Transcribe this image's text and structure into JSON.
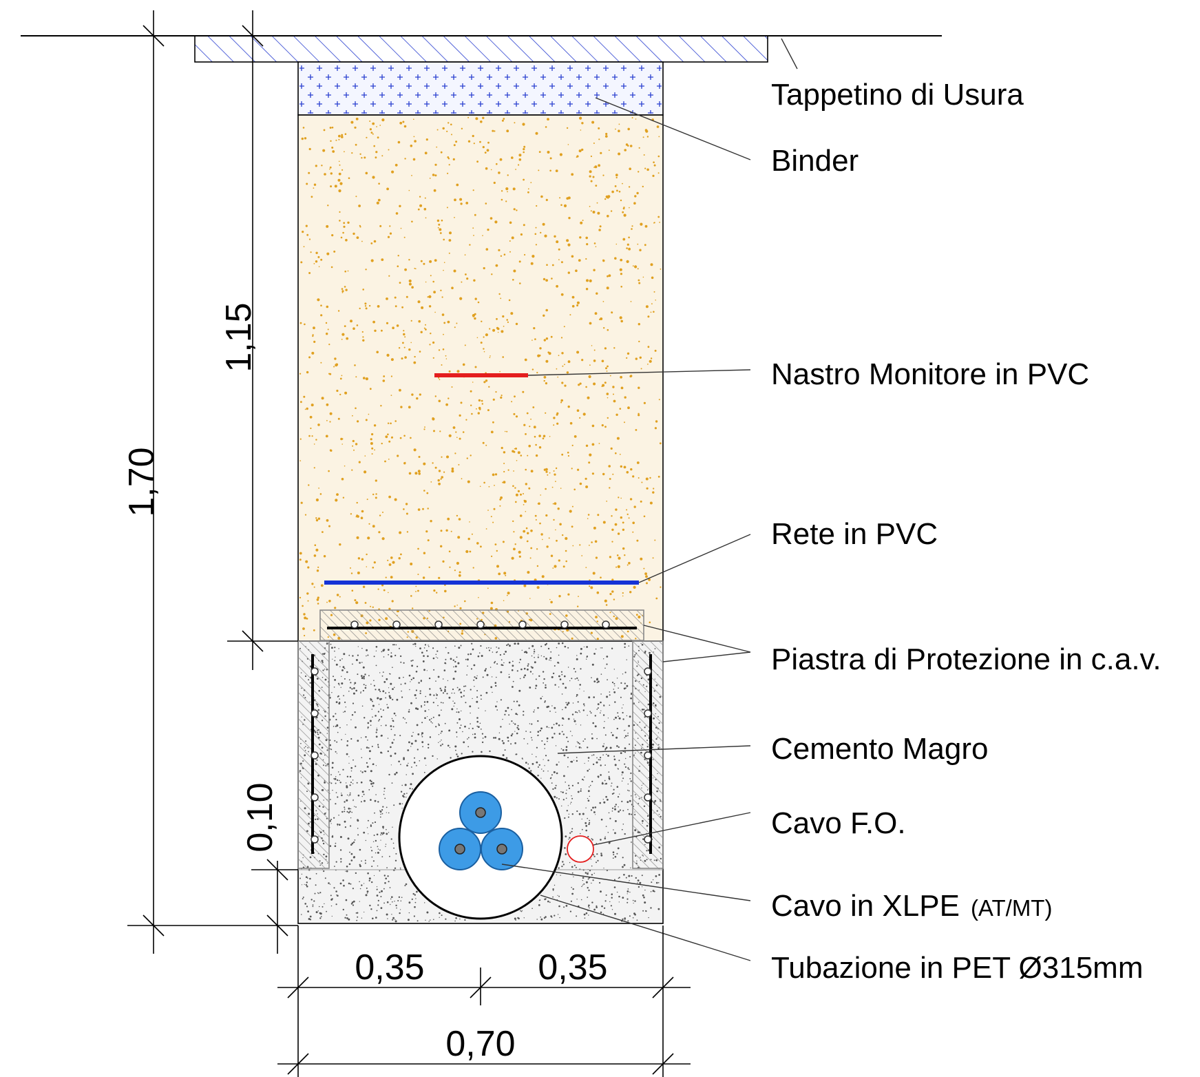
{
  "labels": {
    "tappetino": "Tappetino di Usura",
    "binder": "Binder",
    "nastro": "Nastro Monitore in PVC",
    "rete": "Rete in PVC",
    "piastra": "Piastra di Protezione in c.a.v.",
    "cemento": "Cemento Magro",
    "cavo_fo": "Cavo F.O.",
    "cavo_xlpe": "Cavo in XLPE",
    "cavo_xlpe_suffix": "(AT/MT)",
    "tubazione": "Tubazione in PET Ø315mm"
  },
  "dimensions": {
    "total_depth": "1,70",
    "upper_depth": "1,15",
    "bottom_layer": "0,10",
    "half_width_left": "0,35",
    "half_width_right": "0,35",
    "total_width": "0,70"
  },
  "colors": {
    "backfill": "#fbf3e3",
    "backfill_dots": "#e0a020",
    "binder_fill": "#f4f6ff",
    "binder_marks": "#2a3fd0",
    "asphalt_hatch": "#2a3fd0",
    "nastro": "#e41e1e",
    "rete": "#1533d6",
    "cable_fill": "#3d9be6",
    "fo_cable": "#e41e1e",
    "plate_hatch": "#8a8a8a"
  }
}
